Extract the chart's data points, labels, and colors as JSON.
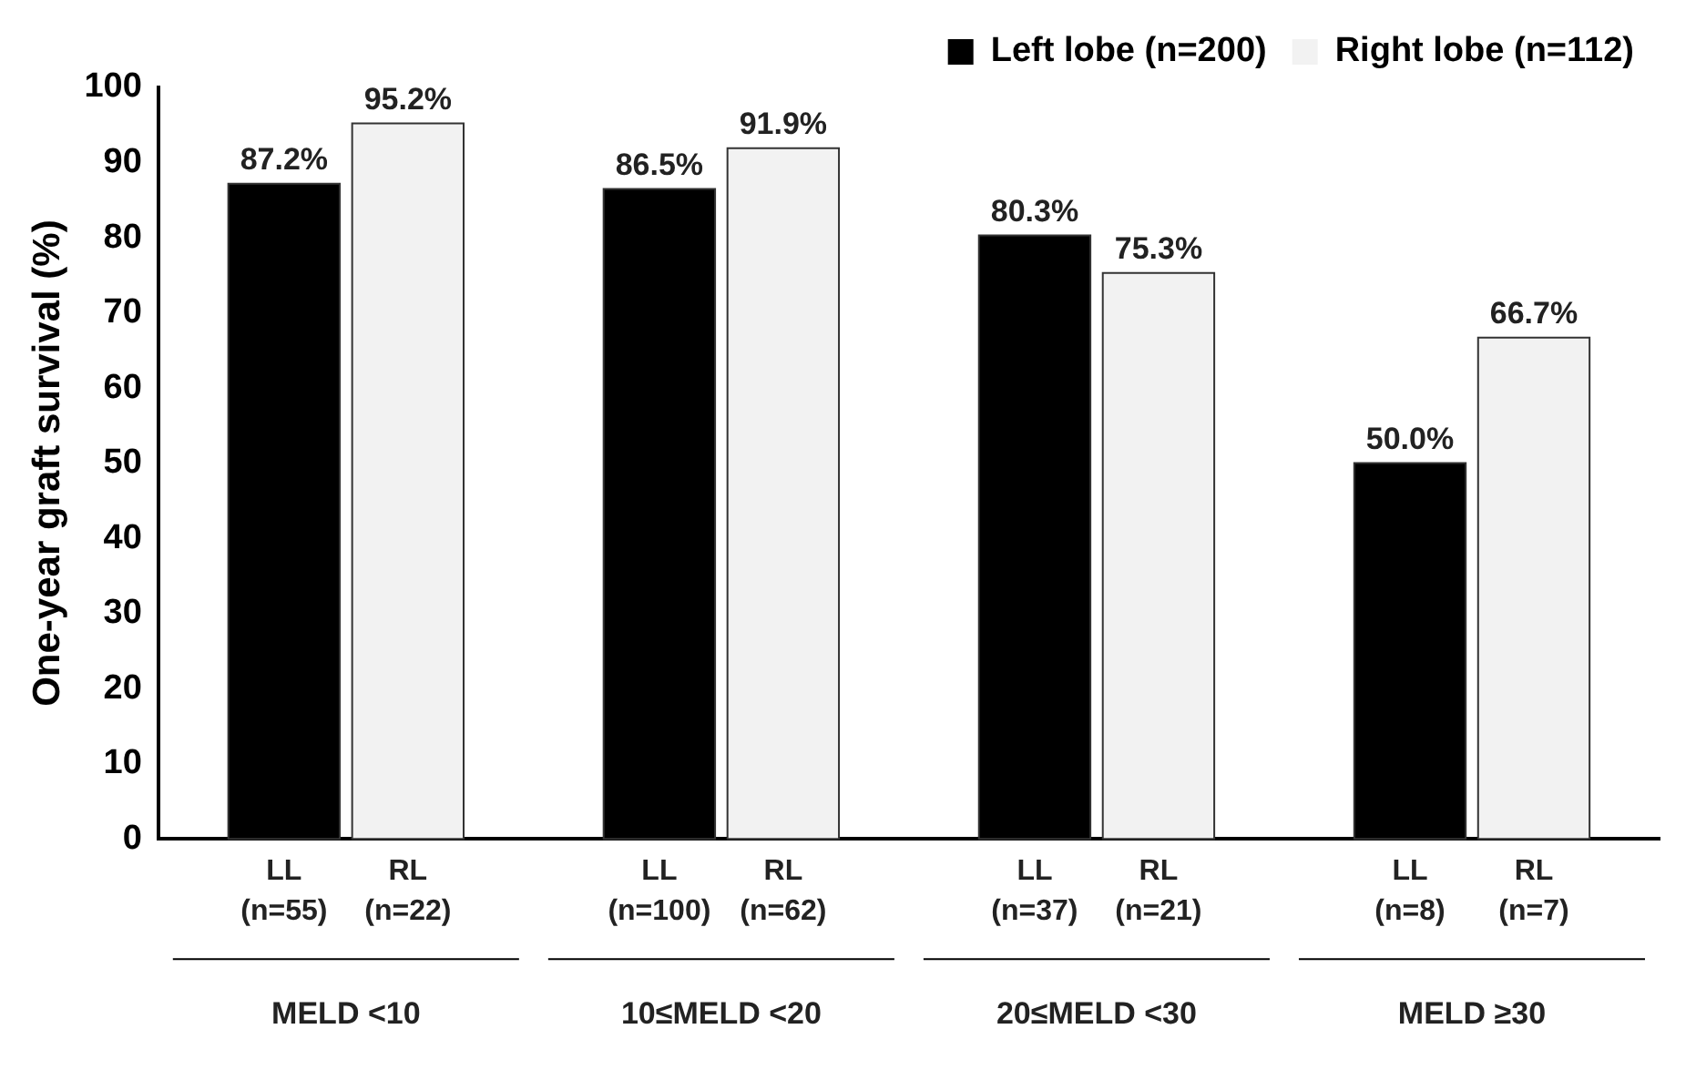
{
  "chart_data": {
    "type": "bar",
    "ylabel": "One-year graft survival (%)",
    "categories": [
      "MELD <10",
      "10≤MELD <20",
      "20≤MELD <30",
      "MELD ≥30"
    ],
    "series": [
      {
        "name": "Left lobe (n=200)",
        "color": "#000000",
        "values": [
          87.2,
          86.5,
          80.3,
          50.0
        ],
        "value_labels": [
          "87.2%",
          "86.5%",
          "80.3%",
          "50.0%"
        ]
      },
      {
        "name": "Right lobe (n=112)",
        "color": "#f2f2f2",
        "values": [
          95.2,
          91.9,
          75.3,
          66.7
        ],
        "value_labels": [
          "95.2%",
          "91.9%",
          "75.3%",
          "66.7%"
        ]
      }
    ],
    "annotations": [
      "LL\n(n=55)",
      "RL\n(n=22)",
      "LL\n(n=100)",
      "RL\n(n=62)",
      "LL\n(n=37)",
      "RL\n(n=21)",
      "LL\n(n=8)",
      "RL\n(n=7)"
    ],
    "ylim": [
      0,
      100
    ],
    "yticks": [
      0,
      10,
      20,
      30,
      40,
      50,
      60,
      70,
      80,
      90,
      100
    ],
    "grid": false,
    "legend": "top right"
  }
}
